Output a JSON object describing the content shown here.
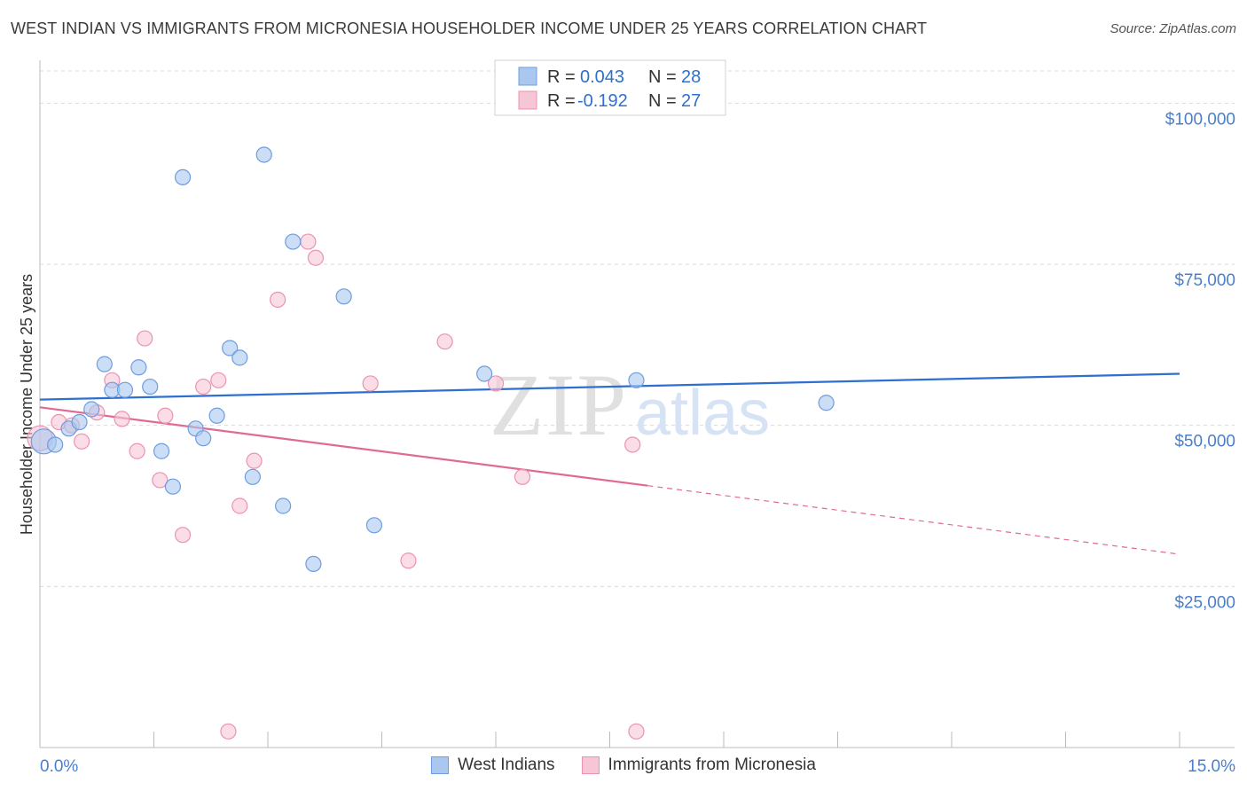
{
  "title": "WEST INDIAN VS IMMIGRANTS FROM MICRONESIA HOUSEHOLDER INCOME UNDER 25 YEARS CORRELATION CHART",
  "source": "Source: ZipAtlas.com",
  "watermark": {
    "zip": "ZIP",
    "atlas": "atlas"
  },
  "colors": {
    "blue_fill": "#aac8ef",
    "blue_stroke": "#6d9de0",
    "blue_line": "#2e6fcf",
    "pink_fill": "#f7c6d6",
    "pink_stroke": "#eb93b1",
    "pink_line": "#e06a95",
    "tick_text": "#4a7fcc",
    "grid": "#d9d9d9"
  },
  "legend": {
    "rows": [
      {
        "r_label": "R =",
        "r_value": "0.043",
        "n_label": "N =",
        "n_value": "28"
      },
      {
        "r_label": "R =",
        "r_value": "-0.192",
        "n_label": "N =",
        "n_value": "27"
      }
    ]
  },
  "bottom_legend": [
    "West Indians",
    "Immigrants from Micronesia"
  ],
  "chart_data": {
    "type": "scatter",
    "title": "WEST INDIAN VS IMMIGRANTS FROM MICRONESIA HOUSEHOLDER INCOME UNDER 25 YEARS CORRELATION CHART",
    "xlabel": "",
    "ylabel": "Householder Income Under 25 years",
    "xlim": [
      0,
      15
    ],
    "ylim": [
      0,
      105000
    ],
    "x_tick_labels": [
      "0.0%",
      "15.0%"
    ],
    "y_ticks": [
      25000,
      50000,
      75000,
      100000
    ],
    "y_tick_labels": [
      "$25,000",
      "$50,000",
      "$75,000",
      "$100,000"
    ],
    "series": [
      {
        "name": "West Indians",
        "r": 0.043,
        "n": 28,
        "trend": {
          "x0": 0,
          "y0": 54000,
          "x1": 15,
          "y1": 58000,
          "dashed_from": null
        },
        "points": [
          {
            "x": 0.05,
            "y": 47500,
            "big": true
          },
          {
            "x": 0.2,
            "y": 47000
          },
          {
            "x": 0.38,
            "y": 49500
          },
          {
            "x": 0.52,
            "y": 50500
          },
          {
            "x": 0.68,
            "y": 52500
          },
          {
            "x": 0.85,
            "y": 59500
          },
          {
            "x": 0.95,
            "y": 55500
          },
          {
            "x": 1.12,
            "y": 55500
          },
          {
            "x": 1.3,
            "y": 59000
          },
          {
            "x": 1.45,
            "y": 56000
          },
          {
            "x": 1.6,
            "y": 46000
          },
          {
            "x": 1.75,
            "y": 40500
          },
          {
            "x": 1.88,
            "y": 88500
          },
          {
            "x": 2.05,
            "y": 49500
          },
          {
            "x": 2.15,
            "y": 48000
          },
          {
            "x": 2.33,
            "y": 51500
          },
          {
            "x": 2.5,
            "y": 62000
          },
          {
            "x": 2.63,
            "y": 60500
          },
          {
            "x": 2.8,
            "y": 42000
          },
          {
            "x": 2.95,
            "y": 92000
          },
          {
            "x": 3.2,
            "y": 37500
          },
          {
            "x": 3.33,
            "y": 78500
          },
          {
            "x": 3.6,
            "y": 28500
          },
          {
            "x": 4.0,
            "y": 70000
          },
          {
            "x": 4.4,
            "y": 34500
          },
          {
            "x": 5.85,
            "y": 58000
          },
          {
            "x": 7.85,
            "y": 57000
          },
          {
            "x": 10.35,
            "y": 53500
          }
        ]
      },
      {
        "name": "Immigrants from Micronesia",
        "r": -0.192,
        "n": 27,
        "trend": {
          "x0": 0,
          "y0": 52800,
          "x1": 15,
          "y1": 30000,
          "dashed_from": 8.0
        },
        "points": [
          {
            "x": 0.0,
            "y": 48000,
            "big": true
          },
          {
            "x": 0.25,
            "y": 50500
          },
          {
            "x": 0.42,
            "y": 50000
          },
          {
            "x": 0.55,
            "y": 47500
          },
          {
            "x": 0.75,
            "y": 52000
          },
          {
            "x": 0.95,
            "y": 57000
          },
          {
            "x": 1.08,
            "y": 51000
          },
          {
            "x": 1.28,
            "y": 46000
          },
          {
            "x": 1.38,
            "y": 63500
          },
          {
            "x": 1.58,
            "y": 41500
          },
          {
            "x": 1.65,
            "y": 51500
          },
          {
            "x": 1.88,
            "y": 33000
          },
          {
            "x": 2.15,
            "y": 56000
          },
          {
            "x": 2.35,
            "y": 57000
          },
          {
            "x": 2.48,
            "y": 2500
          },
          {
            "x": 2.63,
            "y": 37500
          },
          {
            "x": 2.82,
            "y": 44500
          },
          {
            "x": 3.13,
            "y": 69500
          },
          {
            "x": 3.53,
            "y": 78500
          },
          {
            "x": 3.63,
            "y": 76000
          },
          {
            "x": 4.35,
            "y": 56500
          },
          {
            "x": 4.85,
            "y": 29000
          },
          {
            "x": 5.33,
            "y": 63000
          },
          {
            "x": 6.0,
            "y": 56500
          },
          {
            "x": 6.35,
            "y": 42000
          },
          {
            "x": 7.8,
            "y": 47000
          },
          {
            "x": 7.85,
            "y": 2500
          }
        ]
      }
    ]
  }
}
